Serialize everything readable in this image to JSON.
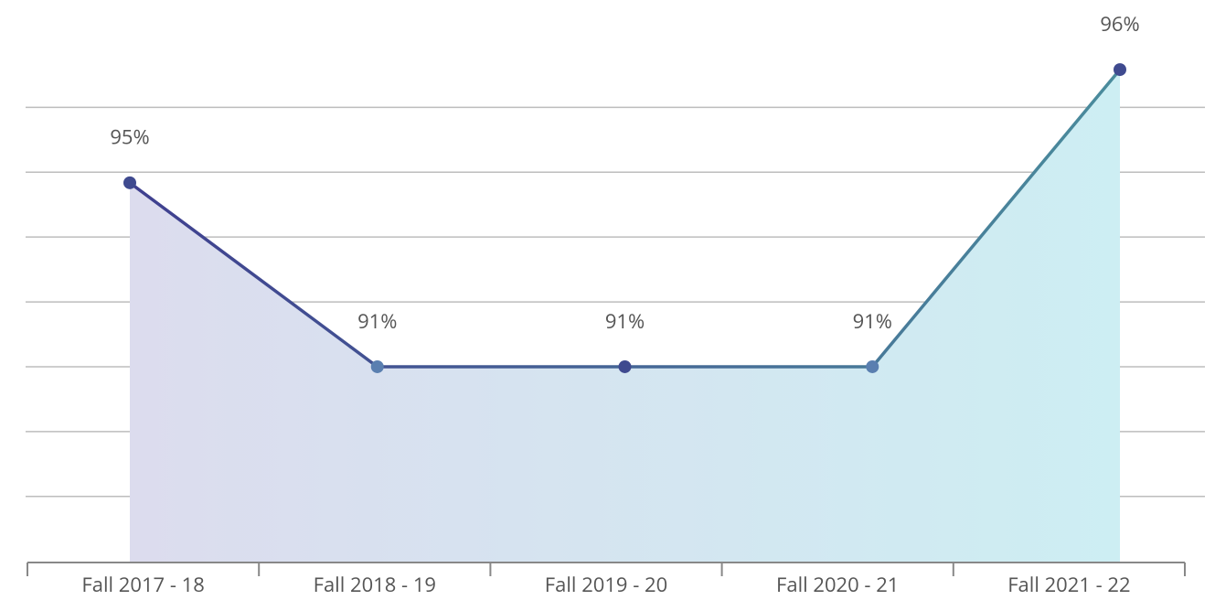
{
  "chart_data": {
    "type": "line",
    "categories": [
      "Fall 2017 - 18",
      "Fall 2018 - 19",
      "Fall 2019 - 20",
      "Fall 2020 - 21",
      "Fall 2021 - 22"
    ],
    "series": [
      {
        "color": "#3f3f8f",
        "values": [
          94.52,
          91.4,
          91.4,
          91.4,
          96.44
        ],
        "value_labels": [
          "95%",
          "91%",
          "91%",
          "91%",
          "96%"
        ]
      }
    ],
    "ylim": [
      88.08,
      97.62
    ],
    "yticks": [
      89.2,
      90.3,
      91.4,
      92.5,
      93.6,
      94.7,
      95.8
    ],
    "grid": true
  }
}
